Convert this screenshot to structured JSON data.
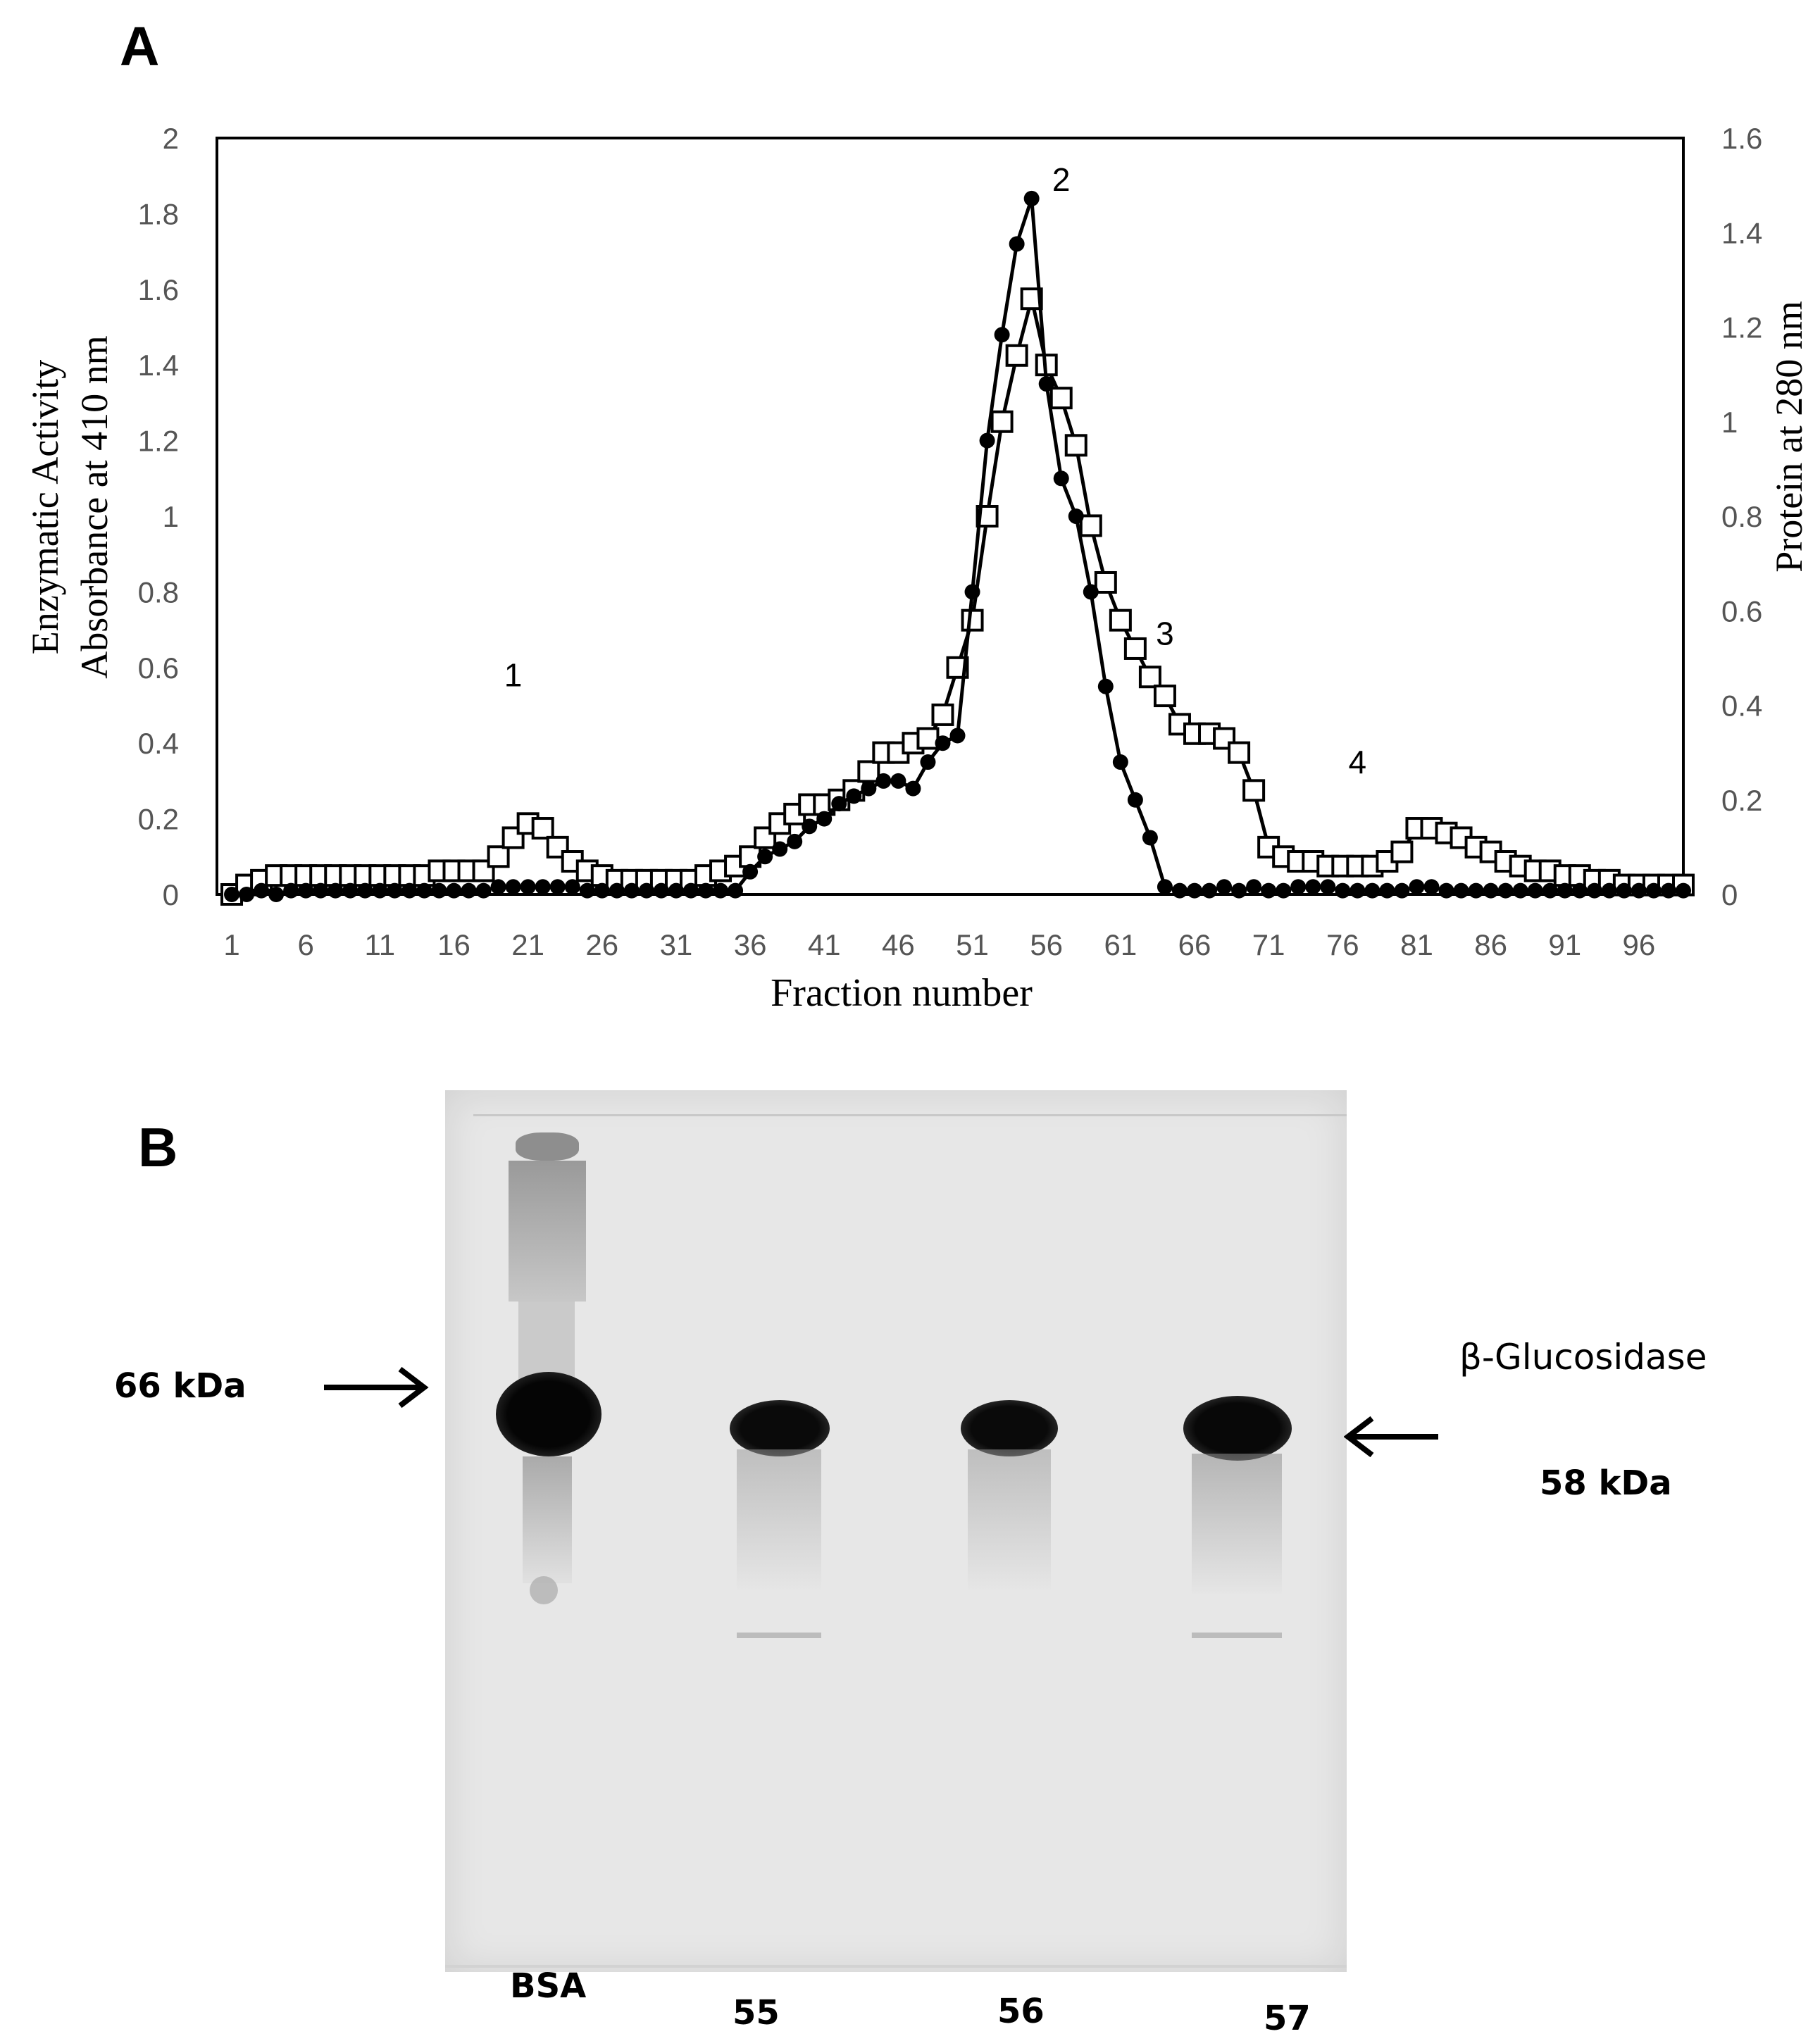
{
  "panel_a": {
    "letter": "A"
  },
  "panel_b": {
    "letter": "B"
  },
  "chart_data": {
    "type": "line",
    "title": "",
    "xlabel": "Fraction number",
    "ylabel_left_line1": "Enzymatic Activity",
    "ylabel_left_line2": "Absorbance at 410 nm",
    "ylabel_right": "Protein at 280 nm",
    "xlim": [
      0,
      99
    ],
    "ylim_left": [
      0,
      2
    ],
    "ylim_right": [
      0,
      1.6
    ],
    "x_ticks": [
      1,
      6,
      11,
      16,
      21,
      26,
      31,
      36,
      41,
      46,
      51,
      56,
      61,
      66,
      71,
      76,
      81,
      86,
      91,
      96
    ],
    "y_left_ticks": [
      "0",
      "0.2",
      "0.4",
      "0.6",
      "0.8",
      "1",
      "1.2",
      "1.4",
      "1.6",
      "1.8",
      "2"
    ],
    "y_right_ticks": [
      "0",
      "0.2",
      "0.4",
      "0.6",
      "0.8",
      "1",
      "1.2",
      "1.4",
      "1.6"
    ],
    "peak_labels": [
      {
        "text": "1",
        "x": 20,
        "y": 0.55
      },
      {
        "text": "2",
        "x": 57,
        "y": 1.86
      },
      {
        "text": "3",
        "x": 64,
        "y": 0.66
      },
      {
        "text": "4",
        "x": 77,
        "y": 0.32
      }
    ],
    "series": [
      {
        "name": "Enzymatic activity (410 nm)",
        "axis": "left",
        "marker": "filled-circle",
        "x": [
          1,
          2,
          3,
          4,
          5,
          6,
          7,
          8,
          9,
          10,
          11,
          12,
          13,
          14,
          15,
          16,
          17,
          18,
          19,
          20,
          21,
          22,
          23,
          24,
          25,
          26,
          27,
          28,
          29,
          30,
          31,
          32,
          33,
          34,
          35,
          36,
          37,
          38,
          39,
          40,
          41,
          42,
          43,
          44,
          45,
          46,
          47,
          48,
          49,
          50,
          51,
          52,
          53,
          54,
          55,
          56,
          57,
          58,
          59,
          60,
          61,
          62,
          63,
          64,
          65,
          66,
          67,
          68,
          69,
          70,
          71,
          72,
          73,
          74,
          75,
          76,
          77,
          78,
          79,
          80,
          81,
          82,
          83,
          84,
          85,
          86,
          87,
          88,
          89,
          90,
          91,
          92,
          93,
          94,
          95,
          96,
          97,
          98,
          99
        ],
        "values": [
          0,
          0,
          0.01,
          0,
          0.01,
          0.01,
          0.01,
          0.01,
          0.01,
          0.01,
          0.01,
          0.01,
          0.01,
          0.01,
          0.01,
          0.01,
          0.01,
          0.01,
          0.02,
          0.02,
          0.02,
          0.02,
          0.02,
          0.02,
          0.01,
          0.01,
          0.01,
          0.01,
          0.01,
          0.01,
          0.01,
          0.01,
          0.01,
          0.01,
          0.01,
          0.06,
          0.1,
          0.12,
          0.14,
          0.18,
          0.2,
          0.24,
          0.26,
          0.28,
          0.3,
          0.3,
          0.28,
          0.35,
          0.4,
          0.42,
          0.8,
          1.2,
          1.48,
          1.72,
          1.84,
          1.35,
          1.1,
          1.0,
          0.8,
          0.55,
          0.35,
          0.25,
          0.15,
          0.02,
          0.01,
          0.01,
          0.01,
          0.02,
          0.01,
          0.02,
          0.01,
          0.01,
          0.02,
          0.02,
          0.02,
          0.01,
          0.01,
          0.01,
          0.01,
          0.01,
          0.02,
          0.02,
          0.01,
          0.01,
          0.01,
          0.01,
          0.01,
          0.01,
          0.01,
          0.01,
          0.01,
          0.01,
          0.01,
          0.01,
          0.01,
          0.01,
          0.01,
          0.01,
          0.01
        ]
      },
      {
        "name": "Protein (280 nm)",
        "axis": "right",
        "marker": "open-square",
        "x": [
          1,
          2,
          3,
          4,
          5,
          6,
          7,
          8,
          9,
          10,
          11,
          12,
          13,
          14,
          15,
          16,
          17,
          18,
          19,
          20,
          21,
          22,
          23,
          24,
          25,
          26,
          27,
          28,
          29,
          30,
          31,
          32,
          33,
          34,
          35,
          36,
          37,
          38,
          39,
          40,
          41,
          42,
          43,
          44,
          45,
          46,
          47,
          48,
          49,
          50,
          51,
          52,
          53,
          54,
          55,
          56,
          57,
          58,
          59,
          60,
          61,
          62,
          63,
          64,
          65,
          66,
          67,
          68,
          69,
          70,
          71,
          72,
          73,
          74,
          75,
          76,
          77,
          78,
          79,
          80,
          81,
          82,
          83,
          84,
          85,
          86,
          87,
          88,
          89,
          90,
          91,
          92,
          93,
          94,
          95,
          96,
          97,
          98,
          99
        ],
        "values": [
          0.0,
          0.02,
          0.03,
          0.04,
          0.04,
          0.04,
          0.04,
          0.04,
          0.04,
          0.04,
          0.04,
          0.04,
          0.04,
          0.04,
          0.05,
          0.05,
          0.05,
          0.05,
          0.08,
          0.12,
          0.15,
          0.14,
          0.1,
          0.07,
          0.05,
          0.04,
          0.03,
          0.03,
          0.03,
          0.03,
          0.03,
          0.03,
          0.04,
          0.05,
          0.06,
          0.08,
          0.12,
          0.15,
          0.17,
          0.19,
          0.19,
          0.2,
          0.22,
          0.26,
          0.3,
          0.3,
          0.32,
          0.33,
          0.38,
          0.48,
          0.58,
          0.8,
          1.0,
          1.14,
          1.26,
          1.12,
          1.05,
          0.95,
          0.78,
          0.66,
          0.58,
          0.52,
          0.46,
          0.42,
          0.36,
          0.34,
          0.34,
          0.33,
          0.3,
          0.22,
          0.1,
          0.08,
          0.07,
          0.07,
          0.06,
          0.06,
          0.06,
          0.06,
          0.07,
          0.09,
          0.14,
          0.14,
          0.13,
          0.12,
          0.1,
          0.09,
          0.07,
          0.06,
          0.05,
          0.05,
          0.04,
          0.04,
          0.03,
          0.03,
          0.02,
          0.02,
          0.02,
          0.02,
          0.02
        ]
      }
    ]
  },
  "gel": {
    "marker_label": "66 kDa",
    "target_name": "β-Glucosidase",
    "target_mw": "58 kDa",
    "lanes": [
      {
        "label": "BSA"
      },
      {
        "label": "55"
      },
      {
        "label": "56"
      },
      {
        "label": "57"
      }
    ]
  }
}
